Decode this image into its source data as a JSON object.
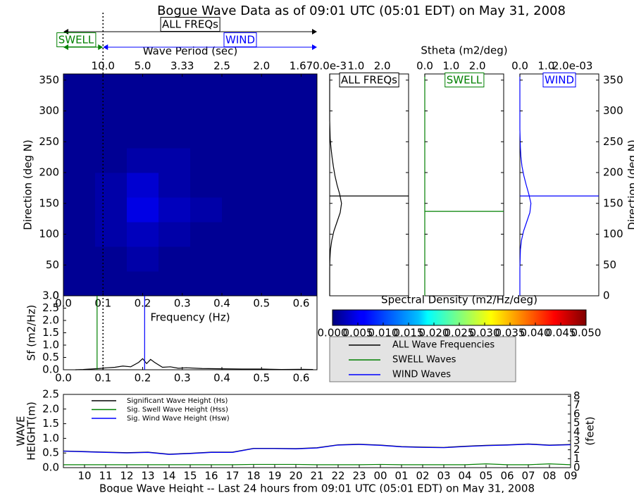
{
  "chart_data": [
    {
      "type": "heatmap",
      "title": "Bogue Wave Data as of 09:01 UTC (05:01 EDT) on May 31, 2008",
      "x2label": "Wave Period (sec)",
      "xlabel": "Frequency (Hz)",
      "ylabel": "Direction (deg N)",
      "xbins": [
        0,
        0.08,
        0.16,
        0.24,
        0.32,
        0.4,
        0.48,
        0.56,
        0.64
      ],
      "ybins": [
        0,
        40,
        80,
        120,
        160,
        200,
        240,
        280,
        320,
        360
      ],
      "values": [
        [
          0.001,
          0.001,
          0.001,
          0.001,
          0.001,
          0.001,
          0.001,
          0.001
        ],
        [
          0.001,
          0.001,
          0.002,
          0.001,
          0.001,
          0.001,
          0.001,
          0.001
        ],
        [
          0.001,
          0.002,
          0.003,
          0.002,
          0.001,
          0.001,
          0.001,
          0.001
        ],
        [
          0.001,
          0.002,
          0.005,
          0.003,
          0.002,
          0.001,
          0.001,
          0.001
        ],
        [
          0.001,
          0.002,
          0.004,
          0.002,
          0.001,
          0.001,
          0.001,
          0.001
        ],
        [
          0.001,
          0.001,
          0.002,
          0.002,
          0.001,
          0.001,
          0.001,
          0.001
        ],
        [
          0.001,
          0.001,
          0.001,
          0.001,
          0.001,
          0.001,
          0.001,
          0.001
        ],
        [
          0.001,
          0.001,
          0.001,
          0.001,
          0.001,
          0.001,
          0.001,
          0.001
        ],
        [
          0.001,
          0.001,
          0.001,
          0.001,
          0.001,
          0.001,
          0.001,
          0.001
        ]
      ],
      "xlim": [
        0,
        0.64
      ],
      "ylim": [
        0,
        360
      ],
      "xticks": [
        {
          "value": 0,
          "label": "0.0"
        },
        0.1,
        0.2,
        0.3,
        0.4,
        0.5,
        0.6
      ],
      "x2ticks": [
        {
          "value": 0.1,
          "label": "10.0"
        },
        {
          "value": 0.2,
          "label": "5.0"
        },
        {
          "value": 0.3,
          "label": "3.33"
        },
        {
          "value": 0.4,
          "label": "2.5"
        },
        {
          "value": 0.5,
          "label": "2.0"
        },
        {
          "value": 0.6,
          "label": "1.67"
        }
      ],
      "yticks": [
        0,
        50,
        100,
        150,
        200,
        250,
        300,
        350
      ],
      "zlim": [
        0,
        0.05
      ],
      "colorbar_label": "Spectral Density (m2/Hz/deg)",
      "colorbar_ticks": [
        {
          "value": 0,
          "label": "0.000"
        },
        {
          "value": 0.005,
          "label": "0.005"
        },
        {
          "value": 0.01,
          "label": "0.010"
        },
        {
          "value": 0.015,
          "label": "0.015"
        },
        {
          "value": 0.02,
          "label": "0.020"
        },
        {
          "value": 0.025,
          "label": "0.025"
        },
        {
          "value": 0.03,
          "label": "0.030"
        },
        {
          "value": 0.035,
          "label": "0.035"
        },
        {
          "value": 0.04,
          "label": "0.040"
        },
        {
          "value": 0.045,
          "label": "0.045"
        },
        {
          "value": 0.05,
          "label": "0.050"
        }
      ],
      "annotations": {
        "all": "ALL FREQs",
        "swell": "SWELL",
        "wind": "WIND"
      },
      "separation_frequency": 0.1
    },
    {
      "type": "direction",
      "title": "ALL FREQs",
      "color": "#000000",
      "y": [
        0,
        15,
        30,
        45,
        60,
        75,
        90,
        105,
        120,
        135,
        150,
        165,
        180,
        195,
        210,
        225,
        240,
        255,
        270,
        285,
        300,
        315,
        330,
        345,
        360
      ],
      "values": [
        0,
        0,
        0,
        0,
        0.01,
        0.03,
        0.08,
        0.16,
        0.28,
        0.4,
        0.45,
        0.38,
        0.28,
        0.2,
        0.14,
        0.09,
        0.05,
        0.02,
        0.01,
        0,
        0,
        0,
        0,
        0,
        0
      ],
      "mean_direction": 162,
      "xlim": [
        0,
        3.0
      ],
      "xticks": [
        {
          "value": 0,
          "label": "0.0e-3"
        },
        {
          "value": 1,
          "label": "1.0"
        },
        {
          "value": 2,
          "label": "2.0"
        }
      ],
      "ylim": [
        0,
        360
      ],
      "yticks": [
        0,
        50,
        100,
        150,
        200,
        250,
        300,
        350
      ],
      "ytick_labels": false
    },
    {
      "type": "direction",
      "title": "SWELL",
      "color": "#008000",
      "xlabel": "Stheta (m2/deg)",
      "y": [
        0,
        90,
        180,
        270,
        360
      ],
      "values": [
        0,
        0,
        0,
        0,
        0
      ],
      "mean_direction": 137,
      "xlim": [
        0,
        3.0
      ],
      "xticks": [
        {
          "value": 0,
          "label": "0.0"
        },
        {
          "value": 1,
          "label": "1.0"
        },
        {
          "value": 2,
          "label": "2.0"
        }
      ],
      "ylim": [
        0,
        360
      ],
      "yticks": [
        0,
        50,
        100,
        150,
        200,
        250,
        300,
        350
      ],
      "ytick_labels": false
    },
    {
      "type": "direction",
      "title": "WIND",
      "color": "#0000ff",
      "ylabel": "Direction (deg N)",
      "y": [
        0,
        15,
        30,
        45,
        60,
        75,
        90,
        105,
        120,
        135,
        150,
        165,
        180,
        195,
        210,
        225,
        240,
        255,
        270,
        285,
        300,
        315,
        330,
        345,
        360
      ],
      "values": [
        0,
        0,
        0,
        0,
        0.01,
        0.02,
        0.06,
        0.14,
        0.26,
        0.38,
        0.42,
        0.34,
        0.24,
        0.15,
        0.08,
        0.04,
        0.02,
        0.01,
        0,
        0,
        0,
        0,
        0,
        0,
        0
      ],
      "mean_direction": 162,
      "xlim": [
        0,
        3.0
      ],
      "xticks": [
        {
          "value": 0,
          "label": "0.0"
        },
        {
          "value": 1,
          "label": "1.0"
        },
        {
          "value": 2,
          "label": "2.0e-03"
        }
      ],
      "ylim": [
        0,
        360
      ],
      "yticks": [
        0,
        50,
        100,
        150,
        200,
        250,
        300,
        350
      ],
      "ytick_labels": true
    },
    {
      "type": "spectrum",
      "ylabel": "Sf (m2/Hz)",
      "color": "#000000",
      "x": [
        0.03,
        0.05,
        0.07,
        0.09,
        0.11,
        0.13,
        0.15,
        0.17,
        0.19,
        0.2,
        0.21,
        0.22,
        0.23,
        0.25,
        0.27,
        0.29,
        0.31,
        0.35,
        0.4,
        0.45,
        0.5,
        0.55,
        0.6,
        0.63
      ],
      "values": [
        0,
        0.01,
        0.03,
        0.05,
        0.08,
        0.1,
        0.15,
        0.12,
        0.3,
        0.45,
        0.25,
        0.42,
        0.3,
        0.1,
        0.12,
        0.06,
        0.08,
        0.05,
        0.04,
        0.03,
        0.03,
        0.01,
        0.02,
        0.01
      ],
      "xlim": [
        0,
        0.64
      ],
      "xticks": [
        {
          "value": 0,
          "label": "0.0"
        },
        0.1,
        0.2,
        0.3,
        0.4,
        0.5,
        0.6
      ],
      "ylim": [
        0,
        3.0
      ],
      "yticks": [
        {
          "value": 0,
          "label": "0.0"
        },
        0.5,
        {
          "value": 1,
          "label": "1.0"
        },
        1.5,
        {
          "value": 2,
          "label": "2.0"
        },
        2.5,
        {
          "value": 3,
          "label": "3.0"
        }
      ],
      "swell_peak": 0.085,
      "wind_peak": 0.205,
      "separation_frequency": 0.1,
      "legend": [
        {
          "name": "ALL Wave Frequencies",
          "color": "#000000"
        },
        {
          "name": "SWELL Waves",
          "color": "#008000"
        },
        {
          "name": "WIND Waves",
          "color": "#0000ff"
        }
      ]
    },
    {
      "type": "line",
      "title": "Bogue Wave Height -- Last 24 hours from 09:01 UTC (05:01 EDT) on May 31, 2008",
      "categories": [
        null,
        "10",
        "11",
        "12",
        "13",
        "14",
        "15",
        "16",
        "17",
        "18",
        "19",
        "20",
        "21",
        "22",
        "23",
        "00",
        "01",
        "02",
        "03",
        "04",
        "05",
        "06",
        "07",
        "08",
        "09"
      ],
      "series": [
        {
          "name": "Significant Wave Height (Hs)",
          "color": "#000000",
          "values": [
            0.57,
            0.55,
            0.53,
            0.51,
            0.53,
            0.46,
            0.49,
            0.53,
            0.53,
            0.66,
            0.66,
            0.65,
            0.68,
            0.78,
            0.8,
            0.77,
            0.72,
            0.7,
            0.69,
            0.73,
            0.76,
            0.78,
            0.81,
            0.77,
            0.79
          ]
        },
        {
          "name": "Sig. Swell Wave Height (Hss)",
          "color": "#008000",
          "values": [
            0.1,
            0.1,
            0.1,
            0.1,
            0.1,
            0.1,
            0.1,
            0.1,
            0.1,
            0.11,
            0.11,
            0.11,
            0.1,
            0.1,
            0.1,
            0.11,
            0.1,
            0.1,
            0.1,
            0.1,
            0.13,
            0.1,
            0.1,
            0.13,
            0.1
          ]
        },
        {
          "name": "Sig. Wind Wave Height (Hsw)",
          "color": "#0000ff",
          "values": [
            0.56,
            0.54,
            0.52,
            0.5,
            0.52,
            0.45,
            0.48,
            0.52,
            0.52,
            0.65,
            0.65,
            0.64,
            0.67,
            0.77,
            0.79,
            0.76,
            0.71,
            0.69,
            0.68,
            0.72,
            0.75,
            0.77,
            0.8,
            0.76,
            0.78
          ]
        }
      ],
      "ylabel": [
        "WAVE",
        "HEIGHT(m)"
      ],
      "y2label": "(feet)",
      "ylim": [
        0,
        2.5
      ],
      "yticks": [
        {
          "value": 0,
          "label": "0.0"
        },
        0.5,
        {
          "value": 1,
          "label": "1.0"
        },
        1.5,
        {
          "value": 2,
          "label": "2.0"
        },
        2.5
      ],
      "y2lim": [
        0,
        8.2
      ],
      "y2ticks": [
        0,
        1,
        2,
        3,
        4,
        5,
        6,
        7,
        8
      ]
    }
  ]
}
